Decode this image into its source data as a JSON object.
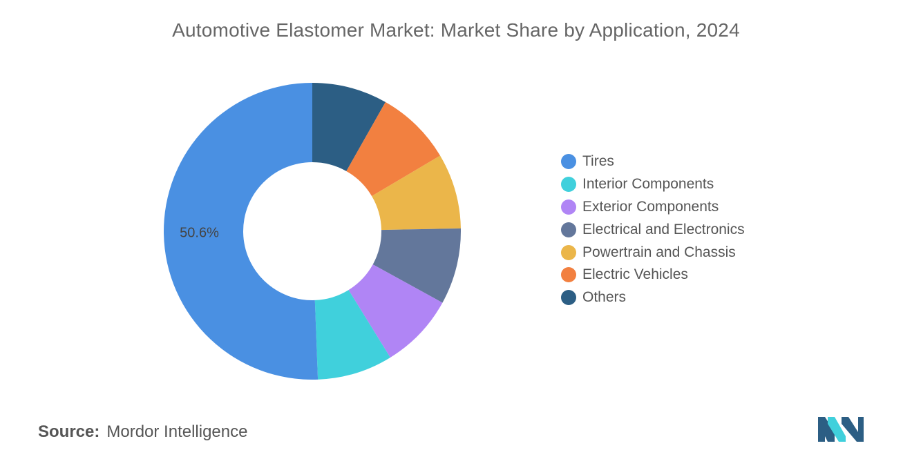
{
  "chart_data": {
    "type": "pie",
    "variant": "donut",
    "title": "Automotive Elastomer Market: Market Share by Application, 2024",
    "categories": [
      "Tires",
      "Interior Components",
      "Exterior Components",
      "Electrical and Electronics",
      "Powertrain and Chassis",
      "Electric Vehicles",
      "Others"
    ],
    "values": [
      50.6,
      8.2,
      8.2,
      8.3,
      8.2,
      8.3,
      8.2
    ],
    "colors": [
      "#4a90e2",
      "#40d0dc",
      "#b085f5",
      "#63779b",
      "#ebb64a",
      "#f28040",
      "#2c5e84"
    ],
    "data_labels": [
      {
        "category": "Tires",
        "text": "50.6%"
      }
    ],
    "legend_position": "right",
    "start": "top, clockwise from Others"
  },
  "legend": {
    "items": [
      {
        "label": "Tires",
        "color": "#4a90e2"
      },
      {
        "label": "Interior Components",
        "color": "#40d0dc"
      },
      {
        "label": "Exterior Components",
        "color": "#b085f5"
      },
      {
        "label": "Electrical and Electronics",
        "color": "#63779b"
      },
      {
        "label": "Powertrain and Chassis",
        "color": "#ebb64a"
      },
      {
        "label": "Electric Vehicles",
        "color": "#f28040"
      },
      {
        "label": "Others",
        "color": "#2c5e84"
      }
    ]
  },
  "footer": {
    "source_label": "Source:",
    "source_name": "Mordor Intelligence"
  },
  "logo": {
    "icon": "mordor-intelligence-logo-icon",
    "colors": [
      "#2c5e84",
      "#40d0dc"
    ]
  }
}
